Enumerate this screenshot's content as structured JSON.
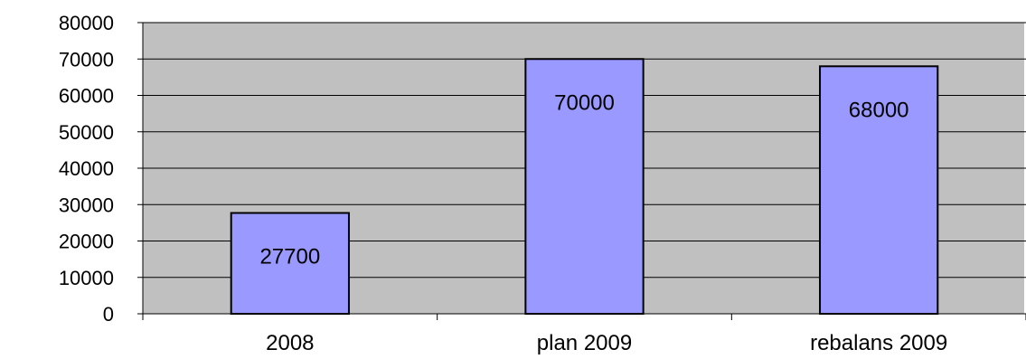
{
  "chart_data": {
    "type": "bar",
    "title": "",
    "xlabel": "",
    "ylabel": "",
    "categories": [
      "2008",
      "plan 2009",
      "rebalans 2009"
    ],
    "values": [
      27700,
      70000,
      68000
    ],
    "data_labels": [
      "27700",
      "70000",
      "68000"
    ],
    "ylim": [
      0,
      80000
    ],
    "yticks": [
      0,
      10000,
      20000,
      30000,
      40000,
      50000,
      60000,
      70000,
      80000
    ],
    "ytick_labels": [
      "0",
      "10000",
      "20000",
      "30000",
      "40000",
      "50000",
      "60000",
      "70000",
      "80000"
    ],
    "grid": true,
    "legend": "none",
    "colors": {
      "plot_background": "#c0c0c0",
      "bar_fill": "#9999ff",
      "bar_stroke": "#000000",
      "grid": "#000000",
      "axis": "#000000"
    }
  }
}
